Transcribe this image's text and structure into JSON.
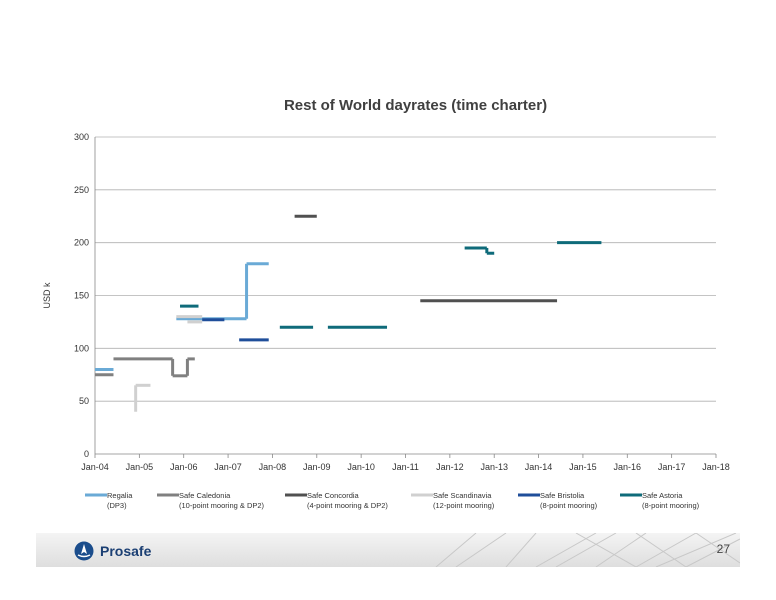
{
  "chart_data": {
    "type": "line",
    "title": "Rest of World dayrates (time charter)",
    "ylabel": "USD k",
    "xlabel": "",
    "ylim": [
      0,
      300
    ],
    "yticks": [
      0,
      50,
      100,
      150,
      200,
      250,
      300
    ],
    "xlim": [
      "2004-01",
      "2018-01"
    ],
    "xticks": [
      "Jan-04",
      "Jan-05",
      "Jan-06",
      "Jan-07",
      "Jan-08",
      "Jan-09",
      "Jan-10",
      "Jan-11",
      "Jan-12",
      "Jan-13",
      "Jan-14",
      "Jan-15",
      "Jan-16",
      "Jan-17",
      "Jan-18"
    ],
    "grid": "horizontal",
    "legend_position": "bottom",
    "series": [
      {
        "name": "Regalia",
        "name_detail": "(DP3)",
        "color": "#6aaad6",
        "segments": [
          {
            "x": [
              "2004-01",
              "2004-06"
            ],
            "y": [
              80,
              80
            ]
          },
          {
            "x": [
              "2005-11",
              "2006-05"
            ],
            "y": [
              128,
              128
            ]
          },
          {
            "x": [
              "2006-05",
              "2007-06"
            ],
            "y": [
              128,
              128
            ]
          },
          {
            "x": [
              "2007-06",
              "2007-06"
            ],
            "y": [
              128,
              180
            ]
          },
          {
            "x": [
              "2007-06",
              "2007-12"
            ],
            "y": [
              180,
              180
            ]
          }
        ]
      },
      {
        "name": "Safe Caledonia",
        "name_detail": "(10-point mooring & DP2)",
        "color": "#808080",
        "segments": [
          {
            "x": [
              "2004-01",
              "2004-06"
            ],
            "y": [
              75,
              75
            ]
          },
          {
            "x": [
              "2004-06",
              "2005-10"
            ],
            "y": [
              90,
              90
            ]
          },
          {
            "x": [
              "2005-10",
              "2005-10"
            ],
            "y": [
              90,
              74
            ]
          },
          {
            "x": [
              "2005-10",
              "2006-02"
            ],
            "y": [
              74,
              74
            ]
          },
          {
            "x": [
              "2006-02",
              "2006-02"
            ],
            "y": [
              74,
              90
            ]
          },
          {
            "x": [
              "2006-02",
              "2006-04"
            ],
            "y": [
              90,
              90
            ]
          }
        ]
      },
      {
        "name": "Safe Concordia",
        "name_detail": "(4-point mooring & DP2)",
        "color": "#505050",
        "segments": [
          {
            "x": [
              "2008-07",
              "2009-01"
            ],
            "y": [
              225,
              225
            ]
          },
          {
            "x": [
              "2011-05",
              "2014-06"
            ],
            "y": [
              145,
              145
            ]
          }
        ]
      },
      {
        "name": "Safe Scandinavia",
        "name_detail": "(12-point mooring)",
        "color": "#d0d0d0",
        "segments": [
          {
            "x": [
              "2005-00",
              "2005-00"
            ],
            "y": [
              40,
              40
            ]
          },
          {
            "x": [
              "2005-00",
              "2005-00"
            ],
            "y": [
              40,
              65
            ]
          },
          {
            "x": [
              "2005-00",
              "2005-04"
            ],
            "y": [
              65,
              65
            ]
          },
          {
            "x": [
              "2005-11",
              "2006-06"
            ],
            "y": [
              130,
              130
            ]
          },
          {
            "x": [
              "2006-02",
              "2006-06"
            ],
            "y": [
              125,
              125
            ]
          }
        ]
      },
      {
        "name": "Safe Bristolia",
        "name_detail": "(8-point mooring)",
        "color": "#1f4e9a",
        "segments": [
          {
            "x": [
              "2006-06",
              "2006-12"
            ],
            "y": [
              127,
              127
            ]
          },
          {
            "x": [
              "2007-04",
              "2008-00"
            ],
            "y": [
              108,
              108
            ]
          }
        ]
      },
      {
        "name": "Safe Astoria",
        "name_detail": "(8-point mooring)",
        "color": "#0f6b7a",
        "segments": [
          {
            "x": [
              "2006-00",
              "2006-05"
            ],
            "y": [
              140,
              140
            ]
          },
          {
            "x": [
              "2008-03",
              "2009-00"
            ],
            "y": [
              120,
              120
            ]
          },
          {
            "x": [
              "2009-04",
              "2010-08"
            ],
            "y": [
              120,
              120
            ]
          },
          {
            "x": [
              "2012-05",
              "2012-11"
            ],
            "y": [
              195,
              195
            ]
          },
          {
            "x": [
              "2012-11",
              "2012-11"
            ],
            "y": [
              195,
              190
            ]
          },
          {
            "x": [
              "2012-11",
              "2013-01"
            ],
            "y": [
              190,
              190
            ]
          },
          {
            "x": [
              "2014-06",
              "2015-06"
            ],
            "y": [
              200,
              200
            ]
          }
        ]
      }
    ]
  },
  "footer": {
    "brand": "Prosafe",
    "page_number": "27"
  }
}
